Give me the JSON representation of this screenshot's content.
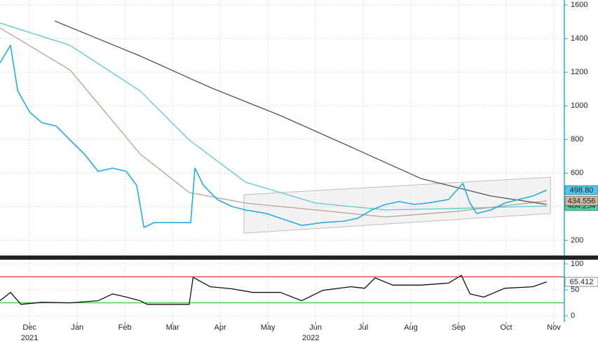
{
  "chart_data": [
    {
      "type": "line",
      "xlim": [
        -0.62,
        11.22
      ],
      "ylim": [
        110,
        1630
      ],
      "yticks": [
        200,
        400,
        600,
        800,
        1000,
        1200,
        1400,
        1600
      ],
      "grid": true,
      "channel": {
        "x": [
          4.5,
          10.93
        ],
        "upper": [
          472,
          576
        ],
        "lower": [
          243,
          360
        ],
        "color": "#bdbdbd"
      },
      "series": [
        {
          "color": "#5cc9cf",
          "width": 1.3,
          "x": [
            -0.62,
            0.85,
            2.32,
            3.35,
            4.53,
            6.0,
            7.47,
            8.94,
            10.85
          ],
          "values": [
            1493,
            1360,
            1089,
            797,
            547,
            422,
            381,
            390,
            404.254
          ],
          "end_value": 404.254,
          "end_label": "404.254",
          "end_color": "#4fd2a8"
        },
        {
          "color": "#b5a390",
          "width": 1.3,
          "x": [
            -0.62,
            0.85,
            2.32,
            3.35,
            4.53,
            6.0,
            7.47,
            8.94,
            10.85
          ],
          "values": [
            1464,
            1214,
            714,
            485,
            422,
            381,
            339,
            372,
            434.556
          ],
          "end_value": 434.556,
          "end_label": "434.556",
          "end_color": "#cdb9a2"
        },
        {
          "color": "#555555",
          "width": 1.3,
          "x": [
            0.53,
            2.32,
            3.79,
            5.26,
            6.74,
            8.21,
            9.68,
            10.85
          ],
          "values": [
            1505,
            1297,
            1110,
            943,
            756,
            568,
            464,
            414
          ]
        },
        {
          "color": "#22aee0",
          "width": 1.6,
          "x": [
            -0.62,
            -0.4,
            -0.25,
            0,
            0.26,
            0.56,
            0.85,
            1.15,
            1.44,
            1.74,
            2.03,
            2.25,
            2.4,
            2.62,
            3.06,
            3.38,
            3.47,
            3.65,
            3.94,
            4.24,
            4.53,
            4.97,
            5.41,
            5.71,
            6.15,
            6.59,
            6.88,
            7.18,
            7.47,
            7.76,
            8.06,
            8.35,
            8.79,
            9.09,
            9.24,
            9.38,
            9.68,
            9.97,
            10.26,
            10.56,
            10.85
          ],
          "values": [
            1255,
            1360,
            1090,
            964,
            900,
            880,
            797,
            714,
            610,
            630,
            610,
            526,
            277,
            306,
            306,
            306,
            630,
            526,
            443,
            402,
            381,
            360,
            318,
            289,
            306,
            314,
            331,
            381,
            414,
            431,
            414,
            422,
            443,
            539,
            422,
            360,
            381,
            422,
            443,
            464,
            498.8
          ],
          "end_value": 498.8,
          "end_label": "498.80",
          "end_color": "#4cc8ee"
        }
      ]
    },
    {
      "type": "line",
      "xlim": [
        -0.62,
        11.22
      ],
      "ylim": [
        -12,
        108
      ],
      "yticks": [
        0,
        50,
        100
      ],
      "grid": true,
      "xticks": [
        {
          "value": 0,
          "label": "Dec"
        },
        {
          "value": 1,
          "label": "Jan"
        },
        {
          "value": 2,
          "label": "Feb"
        },
        {
          "value": 3,
          "label": "Mar"
        },
        {
          "value": 4,
          "label": "Apr"
        },
        {
          "value": 5,
          "label": "May"
        },
        {
          "value": 6,
          "label": "Jun"
        },
        {
          "value": 7,
          "label": "Jul"
        },
        {
          "value": 8,
          "label": "Aug"
        },
        {
          "value": 9,
          "label": "Sep"
        },
        {
          "value": 10,
          "label": "Oct"
        },
        {
          "value": 11,
          "label": "Nov"
        }
      ],
      "year_labels": [
        {
          "value": 0,
          "label": "2021"
        },
        {
          "value": 5.9,
          "label": "2022"
        }
      ],
      "hlines": [
        {
          "value": 75,
          "color": "#d83a3a"
        },
        {
          "value": 25,
          "color": "#3ccf3c"
        }
      ],
      "series": [
        {
          "color": "#111111",
          "width": 1.3,
          "x": [
            -0.62,
            -0.4,
            -0.18,
            0.26,
            0.85,
            1.44,
            1.74,
            2.03,
            2.32,
            2.47,
            3.35,
            3.43,
            3.79,
            4.24,
            4.68,
            5.26,
            5.71,
            6.15,
            6.74,
            7.03,
            7.25,
            7.62,
            8.21,
            8.79,
            9.06,
            9.24,
            9.53,
            9.97,
            10.56,
            10.85
          ],
          "values": [
            29,
            45,
            22,
            26,
            25,
            29,
            42,
            36,
            29,
            22,
            22,
            74,
            56,
            52,
            45,
            45,
            29,
            49,
            56,
            53,
            73,
            59,
            59,
            63,
            78,
            42,
            36,
            53,
            56,
            65.412
          ],
          "end_value": 65.412,
          "end_label": "65.412",
          "end_color": "#ffffff"
        }
      ]
    }
  ]
}
